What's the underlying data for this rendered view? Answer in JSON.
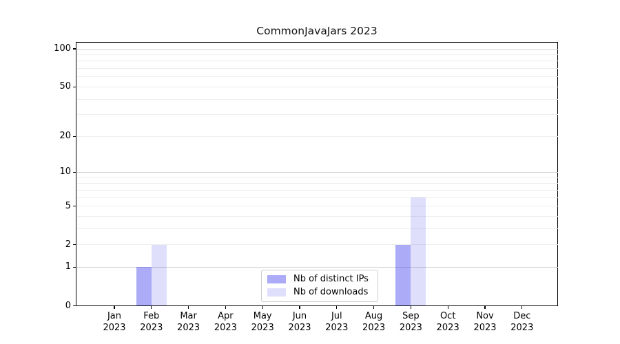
{
  "title": "CommonJavaJars 2023",
  "chart_data": {
    "type": "bar",
    "title": "CommonJavaJars 2023",
    "x_tick_month_labels": [
      "Jan",
      "Feb",
      "Mar",
      "Apr",
      "May",
      "Jun",
      "Jul",
      "Aug",
      "Sep",
      "Oct",
      "Nov",
      "Dec"
    ],
    "x_tick_year_label": "2023",
    "series": [
      {
        "name": "Nb of distinct IPs",
        "color": "#3737eb",
        "fill_opacity": 0.42,
        "values": [
          0,
          1,
          0,
          0,
          0,
          0,
          0,
          0,
          2,
          0,
          0,
          0
        ]
      },
      {
        "name": "Nb of downloads",
        "color": "#3737eb",
        "fill_opacity": 0.16,
        "values": [
          0,
          2,
          0,
          0,
          0,
          0,
          0,
          0,
          6,
          0,
          0,
          0
        ]
      }
    ],
    "y_scale": "log10(value+1)",
    "y_tick_values": [
      0,
      1,
      2,
      5,
      10,
      20,
      50,
      100
    ],
    "ylim": [
      0,
      112
    ],
    "grid": {
      "major_values": [
        1,
        10,
        100
      ],
      "minor_values": [
        2,
        3,
        4,
        5,
        6,
        7,
        8,
        9,
        20,
        30,
        40,
        50,
        60,
        70,
        80,
        90
      ],
      "major_color": "#d2d2d2",
      "minor_color": "#ededed"
    },
    "legend_position": "lower center inside plot",
    "colors": {
      "axis": "#000000",
      "background": "#ffffff",
      "bar_ips_rendered": "#a9a9f6",
      "bar_downloads_rendered": "#dcdcf9"
    }
  }
}
